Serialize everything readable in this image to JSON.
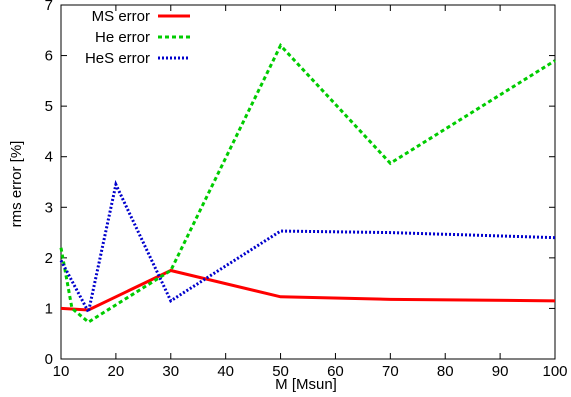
{
  "chart_data": {
    "type": "line",
    "xlabel": "M [Msun]",
    "ylabel": "rms error [%]",
    "xlim": [
      10,
      100
    ],
    "ylim": [
      0,
      7
    ],
    "xticks": [
      10,
      20,
      30,
      40,
      50,
      60,
      70,
      80,
      90,
      100
    ],
    "yticks": [
      0,
      1,
      2,
      3,
      4,
      5,
      6,
      7
    ],
    "legend_position": "top-left",
    "grid": false,
    "series": [
      {
        "name": "MS error",
        "color": "#ff0000",
        "style": "solid",
        "x": [
          10,
          15,
          30,
          50,
          70,
          100
        ],
        "y": [
          1.0,
          0.97,
          1.75,
          1.23,
          1.18,
          1.15
        ]
      },
      {
        "name": "He error",
        "color": "#00cc00",
        "style": "dashed",
        "x": [
          10,
          12,
          15,
          30,
          50,
          70,
          100
        ],
        "y": [
          2.2,
          1.0,
          0.73,
          1.75,
          6.2,
          3.87,
          5.9
        ]
      },
      {
        "name": "HeS error",
        "color": "#0000cc",
        "style": "dotted",
        "x": [
          10,
          15,
          20,
          30,
          50,
          70,
          100
        ],
        "y": [
          1.95,
          0.93,
          3.45,
          1.15,
          2.53,
          2.5,
          2.4
        ]
      }
    ]
  }
}
